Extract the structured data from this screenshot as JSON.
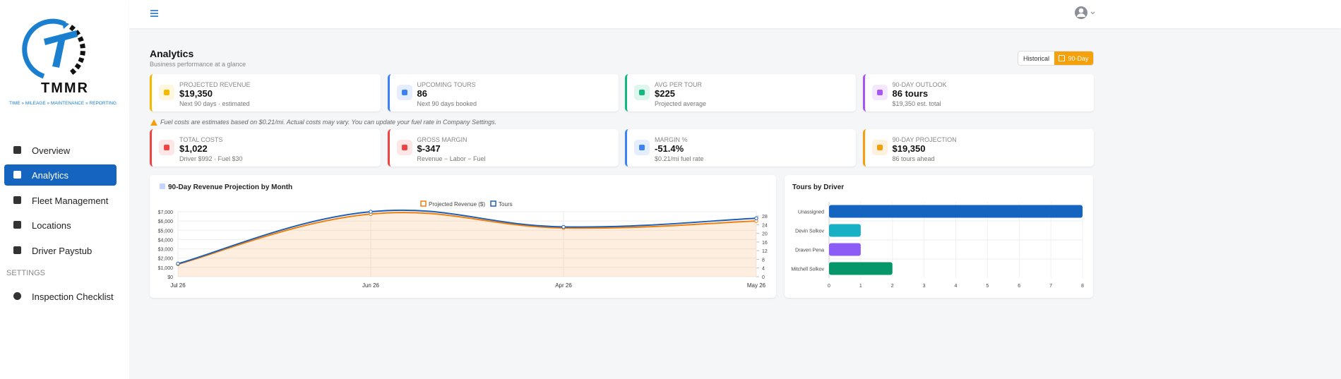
{
  "sidebar": {
    "brand": "TMMR",
    "tagline": "TIME » MILEAGE » MAINTENANCE » REPORTING",
    "nav": [
      "Overview",
      "Analytics",
      "Fleet Management",
      "Locations",
      "Driver Paystub"
    ],
    "section": "SETTINGS",
    "settings_nav": [
      "Inspection Checklist"
    ]
  },
  "header": {
    "title": "Analytics",
    "subtitle": "Business performance at a glance",
    "toggle": [
      "Historical",
      "90-Day"
    ]
  },
  "cards": [
    {
      "label": "PROJECTED REVENUE",
      "value": "$19,350",
      "sub": "Next 90 days · estimated",
      "accent": "#f5b800"
    },
    {
      "label": "UPCOMING TOURS",
      "value": "86",
      "sub": "Next 90 days booked",
      "accent": "#3b82f6"
    },
    {
      "label": "AVG PER TOUR",
      "value": "$225",
      "sub": "Projected average",
      "accent": "#10b981"
    },
    {
      "label": "90-DAY OUTLOOK",
      "value": "86 tours",
      "sub": "$19,350 est. total",
      "accent": "#a855f7"
    }
  ],
  "note": "Fuel costs are estimates based on $0.21/mi. Actual costs may vary. You can update your fuel rate in Company Settings.",
  "cards2": [
    {
      "label": "TOTAL COSTS",
      "value": "$1,022",
      "sub": "Driver $992 · Fuel $30",
      "accent": "#ef4444"
    },
    {
      "label": "GROSS MARGIN",
      "value": "$-347",
      "sub": "Revenue − Labor − Fuel",
      "accent": "#ef4444"
    },
    {
      "label": "MARGIN %",
      "value": "-51.4%",
      "sub": "$0.21/mi fuel rate",
      "accent": "#3b82f6"
    },
    {
      "label": "90-DAY PROJECTION",
      "value": "$19,350",
      "sub": "86 tours ahead",
      "accent": "#f59e0b"
    }
  ],
  "chart_data": [
    {
      "type": "line",
      "title": "90-Day Revenue Projection by Month",
      "categories": [
        "Jul 26",
        "Jun 26",
        "Apr 26",
        "May 26"
      ],
      "series": [
        {
          "name": "Projected Revenue ($)",
          "color": "#f07f0e",
          "values": [
            1350,
            6750,
            5250,
            6000
          ]
        },
        {
          "name": "Tours",
          "color": "#1f5fb4",
          "values": [
            6,
            30,
            23,
            27
          ],
          "axis": "y2"
        }
      ],
      "ylim": [
        0,
        7000
      ],
      "yticks": [
        {
          "value": 0,
          "label": "$0"
        },
        {
          "value": 1000,
          "label": "$1,000"
        },
        {
          "value": 2000,
          "label": "$2,000"
        },
        {
          "value": 3000,
          "label": "$3,000"
        },
        {
          "value": 4000,
          "label": "$4,000"
        },
        {
          "value": 5000,
          "label": "$5,000"
        },
        {
          "value": 6000,
          "label": "$6,000"
        },
        {
          "value": 7000,
          "label": "$7,000"
        }
      ],
      "y2lim": [
        0,
        30
      ],
      "y2ticks": [
        0,
        4,
        8,
        12,
        16,
        20,
        24,
        28
      ],
      "grid": true,
      "legend": "top"
    },
    {
      "type": "hbar",
      "title": "Tours by Driver",
      "categories": [
        "Unassigned",
        "Devin Solkov",
        "Draven Pena",
        "Mitchell Solkov"
      ],
      "values": [
        8,
        1,
        1,
        2
      ],
      "colors": [
        "#1565c0",
        "#17b0c4",
        "#8b5cf6",
        "#059669"
      ],
      "xlim": [
        0,
        8
      ],
      "xticks": [
        0,
        1,
        2,
        3,
        4,
        5,
        6,
        7,
        8
      ],
      "grid": true
    }
  ]
}
